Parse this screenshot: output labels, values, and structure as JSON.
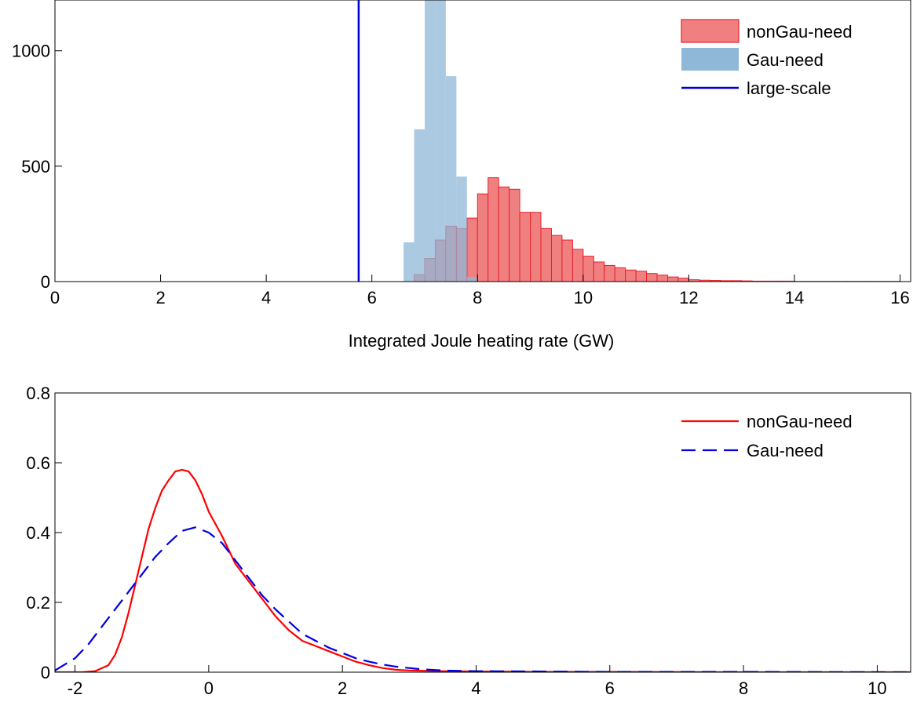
{
  "chart_data": [
    {
      "type": "bar",
      "title": "",
      "xlabel": "Integrated Joule heating rate (GW)",
      "ylabel": "",
      "xlim": [
        0,
        16.2
      ],
      "ylim": [
        0,
        1220
      ],
      "xticks": [
        0,
        2,
        4,
        6,
        8,
        10,
        12,
        14,
        16
      ],
      "xtick_labels": [
        "0",
        "2",
        "4",
        "6",
        "8",
        "10",
        "12",
        "14",
        "16"
      ],
      "yticks": [
        0,
        500,
        1000
      ],
      "ytick_labels": [
        "0",
        "500",
        "1000"
      ],
      "grid": false,
      "legend_position": "top-right",
      "bin_width": 0.2,
      "series": [
        {
          "name": "nonGau-need",
          "kind": "histogram",
          "color": "#f08080",
          "edge_color": "#e8202a",
          "bin_starts": [
            6.8,
            7.0,
            7.2,
            7.4,
            7.6,
            7.8,
            8.0,
            8.2,
            8.4,
            8.6,
            8.8,
            9.0,
            9.2,
            9.4,
            9.6,
            9.8,
            10.0,
            10.2,
            10.4,
            10.6,
            10.8,
            11.0,
            11.2,
            11.4,
            11.6,
            11.8,
            12.0,
            12.2,
            12.4,
            12.6,
            12.8,
            13.0,
            13.2,
            13.4,
            13.6,
            13.8,
            14.0,
            14.2,
            14.4,
            14.6,
            14.8,
            15.0,
            15.2,
            15.4,
            15.6,
            15.8
          ],
          "counts": [
            30,
            100,
            180,
            240,
            230,
            275,
            380,
            450,
            410,
            400,
            300,
            300,
            230,
            200,
            180,
            140,
            110,
            85,
            70,
            60,
            50,
            45,
            35,
            28,
            20,
            15,
            8,
            6,
            5,
            4,
            4,
            3,
            2,
            2,
            2,
            2,
            1,
            1,
            1,
            1,
            1,
            1,
            1,
            1,
            1,
            1
          ]
        },
        {
          "name": "Gau-need",
          "kind": "histogram",
          "color": "#8fb8d8",
          "bin_starts": [
            6.6,
            6.8,
            7.0,
            7.2,
            7.4,
            7.6,
            7.8
          ],
          "counts": [
            170,
            660,
            1220,
            1220,
            890,
            455,
            20
          ]
        },
        {
          "name": "large-scale",
          "kind": "vertical-line",
          "color": "#0000d0",
          "x": 5.75
        }
      ]
    },
    {
      "type": "line",
      "title": "",
      "xlabel": "",
      "ylabel": "",
      "xlim": [
        -2.3,
        10.5
      ],
      "ylim": [
        0,
        0.8
      ],
      "xticks": [
        -2,
        0,
        2,
        4,
        6,
        8,
        10
      ],
      "xtick_labels": [
        "-2",
        "0",
        "2",
        "4",
        "6",
        "8",
        "10"
      ],
      "yticks": [
        0,
        0.2,
        0.4,
        0.6,
        0.8
      ],
      "ytick_labels": [
        "0",
        "0.2",
        "0.4",
        "0.6",
        "0.8"
      ],
      "grid": false,
      "legend_position": "top-right",
      "series": [
        {
          "name": "nonGau-need",
          "color": "#ff0000",
          "dash": "solid",
          "x": [
            -2.3,
            -1.9,
            -1.7,
            -1.5,
            -1.4,
            -1.3,
            -1.2,
            -1.1,
            -1.0,
            -0.9,
            -0.8,
            -0.7,
            -0.6,
            -0.5,
            -0.4,
            -0.3,
            -0.2,
            -0.1,
            0.0,
            0.2,
            0.4,
            0.6,
            0.8,
            1.0,
            1.2,
            1.4,
            1.6,
            1.8,
            2.0,
            2.2,
            2.4,
            2.6,
            2.8,
            3.0,
            3.2,
            3.5,
            4.0,
            5.0,
            6.0,
            8.0,
            10.5
          ],
          "y": [
            0,
            0,
            0.003,
            0.02,
            0.05,
            0.1,
            0.17,
            0.25,
            0.33,
            0.41,
            0.47,
            0.52,
            0.55,
            0.575,
            0.58,
            0.575,
            0.55,
            0.51,
            0.46,
            0.39,
            0.31,
            0.26,
            0.21,
            0.16,
            0.12,
            0.09,
            0.075,
            0.06,
            0.045,
            0.03,
            0.02,
            0.012,
            0.007,
            0.005,
            0.004,
            0.003,
            0.002,
            0.001,
            0.001,
            0,
            0
          ]
        },
        {
          "name": "Gau-need",
          "color": "#0000e0",
          "dash": "dashed",
          "x": [
            -2.3,
            -2.0,
            -1.8,
            -1.6,
            -1.4,
            -1.2,
            -1.0,
            -0.8,
            -0.6,
            -0.4,
            -0.2,
            0.0,
            0.2,
            0.4,
            0.6,
            0.8,
            1.0,
            1.2,
            1.4,
            1.6,
            1.8,
            2.0,
            2.2,
            2.4,
            2.6,
            2.8,
            3.0,
            3.2,
            3.5,
            4.0,
            5.0,
            6.0,
            8.0,
            10.5
          ],
          "y": [
            0.005,
            0.04,
            0.08,
            0.13,
            0.18,
            0.23,
            0.28,
            0.33,
            0.37,
            0.405,
            0.415,
            0.4,
            0.37,
            0.32,
            0.27,
            0.22,
            0.18,
            0.145,
            0.11,
            0.09,
            0.07,
            0.055,
            0.04,
            0.03,
            0.022,
            0.016,
            0.012,
            0.008,
            0.005,
            0.003,
            0.002,
            0.001,
            0.001,
            0
          ]
        }
      ]
    }
  ]
}
